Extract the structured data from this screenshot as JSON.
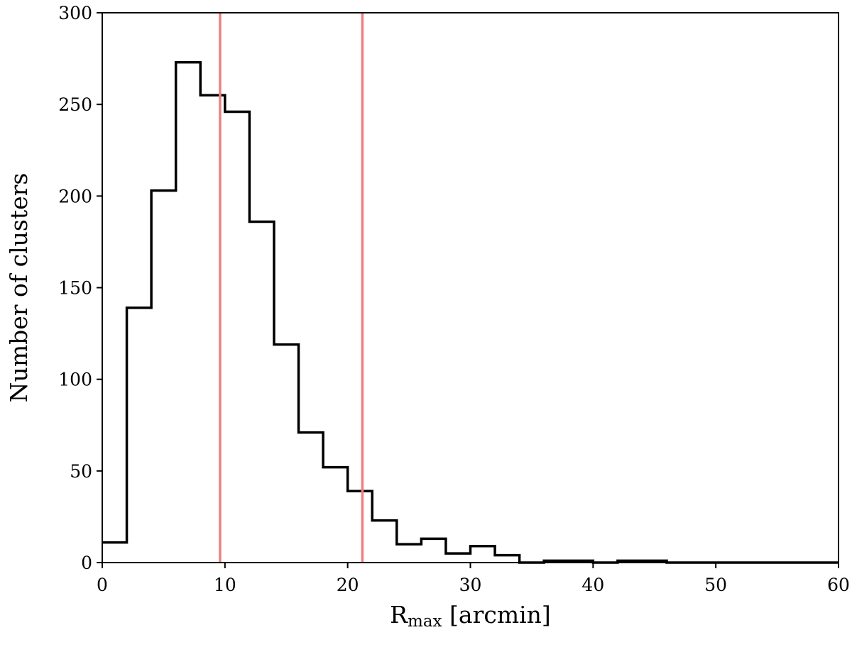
{
  "chart_data": {
    "type": "histogram",
    "title": "",
    "xlabel": {
      "main": "R",
      "sub": "max",
      "rest": " [arcmin]"
    },
    "ylabel": "Number of clusters",
    "xlim": [
      0,
      60
    ],
    "ylim": [
      0,
      300
    ],
    "xticks": [
      0,
      10,
      20,
      30,
      40,
      50,
      60
    ],
    "yticks": [
      0,
      50,
      100,
      150,
      200,
      250,
      300
    ],
    "grid": false,
    "legend": "none",
    "bin_width": 2,
    "series": [
      {
        "style": "step",
        "color": "#000000",
        "bins": [
          {
            "x0": 0,
            "x1": 2,
            "count": 11
          },
          {
            "x0": 2,
            "x1": 4,
            "count": 139
          },
          {
            "x0": 4,
            "x1": 6,
            "count": 203
          },
          {
            "x0": 6,
            "x1": 8,
            "count": 273
          },
          {
            "x0": 8,
            "x1": 10,
            "count": 255
          },
          {
            "x0": 10,
            "x1": 12,
            "count": 246
          },
          {
            "x0": 12,
            "x1": 14,
            "count": 186
          },
          {
            "x0": 14,
            "x1": 16,
            "count": 119
          },
          {
            "x0": 16,
            "x1": 18,
            "count": 71
          },
          {
            "x0": 18,
            "x1": 20,
            "count": 52
          },
          {
            "x0": 20,
            "x1": 22,
            "count": 39
          },
          {
            "x0": 22,
            "x1": 24,
            "count": 23
          },
          {
            "x0": 24,
            "x1": 26,
            "count": 10
          },
          {
            "x0": 26,
            "x1": 28,
            "count": 13
          },
          {
            "x0": 28,
            "x1": 30,
            "count": 5
          },
          {
            "x0": 30,
            "x1": 32,
            "count": 9
          },
          {
            "x0": 32,
            "x1": 34,
            "count": 4
          },
          {
            "x0": 34,
            "x1": 36,
            "count": 0
          },
          {
            "x0": 36,
            "x1": 38,
            "count": 1
          },
          {
            "x0": 38,
            "x1": 40,
            "count": 1
          },
          {
            "x0": 40,
            "x1": 42,
            "count": 0
          },
          {
            "x0": 42,
            "x1": 44,
            "count": 1
          },
          {
            "x0": 44,
            "x1": 46,
            "count": 1
          },
          {
            "x0": 46,
            "x1": 48,
            "count": 0
          },
          {
            "x0": 48,
            "x1": 50,
            "count": 0
          },
          {
            "x0": 50,
            "x1": 52,
            "count": 0
          },
          {
            "x0": 52,
            "x1": 54,
            "count": 0
          },
          {
            "x0": 54,
            "x1": 56,
            "count": 0
          },
          {
            "x0": 56,
            "x1": 58,
            "count": 0
          },
          {
            "x0": 58,
            "x1": 60,
            "count": 0
          }
        ]
      }
    ],
    "vlines": [
      {
        "x": 9.6,
        "color": "#f08080"
      },
      {
        "x": 21.2,
        "color": "#f08080"
      }
    ]
  }
}
